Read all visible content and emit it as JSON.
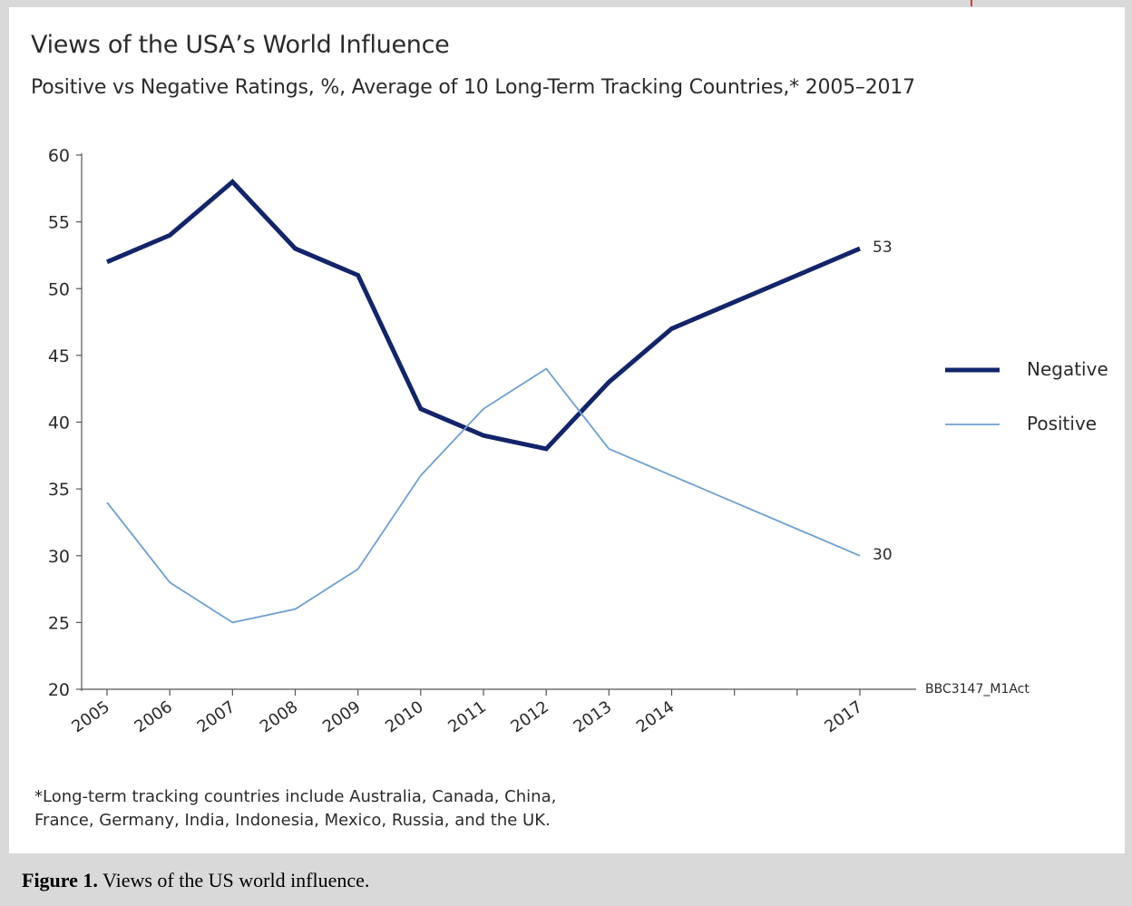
{
  "title": "Views of the USA’s World Influence",
  "subtitle": "Positive vs Negative Ratings, %, Average of 10 Long-Term Tracking Countries,* 2005–2017",
  "source_code": "BBC3147_M1Act",
  "footnote_line1": "*Long-term tracking countries include Australia, Canada, China,",
  "footnote_line2": "France, Germany, India, Indonesia, Mexico, Russia, and the UK.",
  "caption_label": "Figure 1.",
  "caption_text": " Views of the US world influence.",
  "colors": {
    "negative": "#12256b",
    "positive": "#6d9fd3",
    "axis": "#555555"
  },
  "chart_data": {
    "type": "line",
    "x_tick_labels": [
      "2005",
      "2006",
      "2007",
      "2008",
      "2009",
      "2010",
      "2011",
      "2012",
      "2013",
      "2014",
      "2017"
    ],
    "x_ticks": [
      2005,
      2006,
      2007,
      2008,
      2009,
      2010,
      2011,
      2012,
      2013,
      2014,
      2015,
      2016,
      2017
    ],
    "xlim": [
      2005,
      2017
    ],
    "ylim": [
      20,
      60
    ],
    "y_ticks": [
      20,
      25,
      30,
      35,
      40,
      45,
      50,
      55,
      60
    ],
    "legend_position": "right",
    "series": [
      {
        "name": "Negative",
        "x": [
          2005,
          2006,
          2007,
          2008,
          2009,
          2010,
          2011,
          2012,
          2013,
          2014,
          2017
        ],
        "values": [
          52,
          54,
          58,
          53,
          51,
          41,
          39,
          38,
          43,
          47,
          53
        ],
        "end_label": "53"
      },
      {
        "name": "Positive",
        "x": [
          2005,
          2006,
          2007,
          2008,
          2009,
          2010,
          2011,
          2012,
          2013,
          2014,
          2017
        ],
        "values": [
          34,
          28,
          25,
          26,
          29,
          36,
          41,
          44,
          38,
          36,
          30
        ],
        "end_label": "30"
      }
    ]
  }
}
